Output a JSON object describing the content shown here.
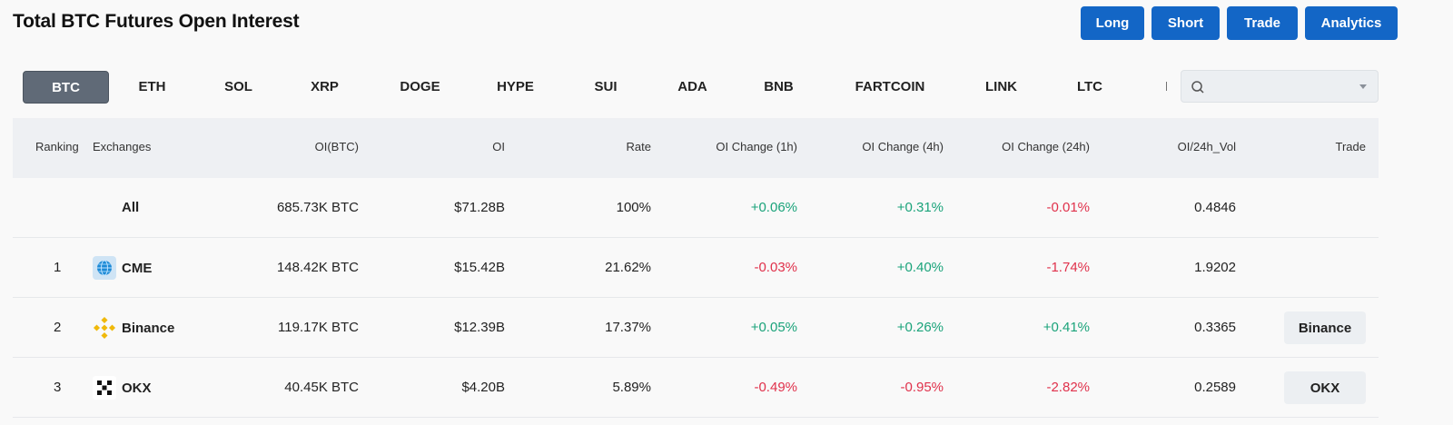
{
  "page": {
    "title": "Total BTC Futures Open Interest"
  },
  "actions": {
    "long": "Long",
    "short": "Short",
    "trade": "Trade",
    "analytics": "Analytics"
  },
  "coins": {
    "selected": "BTC",
    "items": [
      "BTC",
      "ETH",
      "SOL",
      "XRP",
      "DOGE",
      "HYPE",
      "SUI",
      "ADA",
      "BNB",
      "FARTCOIN",
      "LINK",
      "LTC",
      "F"
    ]
  },
  "search": {
    "placeholder": ""
  },
  "table": {
    "headers": {
      "ranking": "Ranking",
      "exchanges": "Exchanges",
      "oi_btc": "OI(BTC)",
      "oi": "OI",
      "rate": "Rate",
      "change_1h": "OI Change (1h)",
      "change_4h": "OI Change (4h)",
      "change_24h": "OI Change (24h)",
      "oi_vol": "OI/24h_Vol",
      "trade": "Trade"
    },
    "rows": [
      {
        "rank": "",
        "exchange": "All",
        "icon": "",
        "oi_btc": "685.73K BTC",
        "oi": "$71.28B",
        "rate": "100%",
        "change_1h": "+0.06%",
        "change_4h": "+0.31%",
        "change_24h": "-0.01%",
        "oi_vol": "0.4846",
        "trade": ""
      },
      {
        "rank": "1",
        "exchange": "CME",
        "icon": "cme-icon",
        "oi_btc": "148.42K BTC",
        "oi": "$15.42B",
        "rate": "21.62%",
        "change_1h": "-0.03%",
        "change_4h": "+0.40%",
        "change_24h": "-1.74%",
        "oi_vol": "1.9202",
        "trade": ""
      },
      {
        "rank": "2",
        "exchange": "Binance",
        "icon": "binance-icon",
        "oi_btc": "119.17K BTC",
        "oi": "$12.39B",
        "rate": "17.37%",
        "change_1h": "+0.05%",
        "change_4h": "+0.26%",
        "change_24h": "+0.41%",
        "oi_vol": "0.3365",
        "trade": "Binance"
      },
      {
        "rank": "3",
        "exchange": "OKX",
        "icon": "okx-icon",
        "oi_btc": "40.45K BTC",
        "oi": "$4.20B",
        "rate": "5.89%",
        "change_1h": "-0.49%",
        "change_4h": "-0.95%",
        "change_24h": "-2.82%",
        "oi_vol": "0.2589",
        "trade": "OKX"
      }
    ]
  },
  "colors": {
    "positive": "#1aa37a",
    "negative": "#e0314b",
    "primary_button": "#1366c6"
  }
}
